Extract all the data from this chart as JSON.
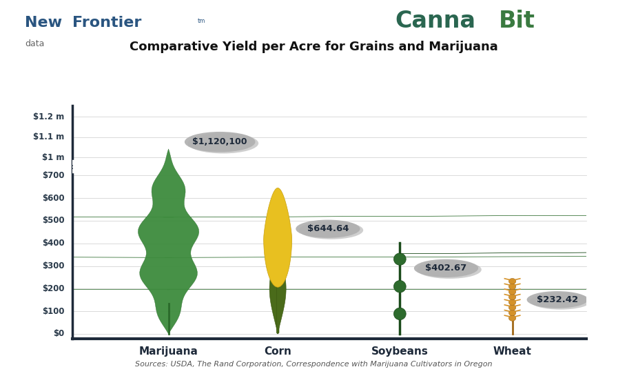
{
  "title": "Comparative Yield per Acre for Grains and Marijuana",
  "categories": [
    "Marijuana",
    "Corn",
    "Soybeans",
    "Wheat"
  ],
  "values": [
    1120100,
    644.64,
    402.67,
    232.42
  ],
  "labels": [
    "$1,120,100",
    "$644.64",
    "$402.67",
    "$232.42"
  ],
  "ytick_labels": [
    "$0",
    "$100",
    "$200",
    "$300",
    "$400",
    "$500",
    "$600",
    "$700",
    "$1 m",
    "$1.1 m",
    "$1.2 m"
  ],
  "ytick_vals_real": [
    0,
    100,
    200,
    300,
    400,
    500,
    600,
    700,
    1000000,
    1100000,
    1200000
  ],
  "source_text": "Sources: USDA, The Rand Corporation, Correspondence with Marijuana Cultivators in Oregon",
  "background_color": "#ffffff",
  "title_fontsize": 13,
  "axis_dark": "#1e2a3a",
  "cannabis_color": "#3d8b3d",
  "cannabis_dark": "#2a6a2a",
  "corn_yellow": "#e8c020",
  "corn_green": "#4a6b1a",
  "corn_dark_green": "#3a5510",
  "soy_color": "#2d6b2d",
  "soy_dark": "#1a4a1a",
  "wheat_color": "#d4922a",
  "wheat_dark": "#a06818",
  "ellipse_fill": "#b0b0b0",
  "ellipse_shadow": "#888888",
  "label_text_color": "#1e2a3a",
  "tick_text_color": "#2a3a4a",
  "gridline_color": "#cccccc",
  "source_color": "#555555"
}
